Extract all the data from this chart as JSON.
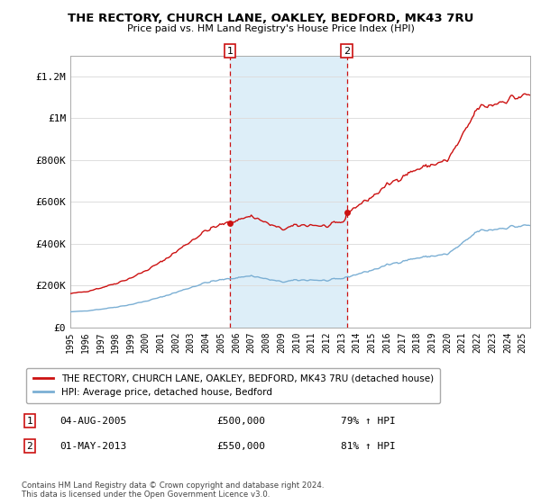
{
  "title": "THE RECTORY, CHURCH LANE, OAKLEY, BEDFORD, MK43 7RU",
  "subtitle": "Price paid vs. HM Land Registry's House Price Index (HPI)",
  "ylabel_ticks": [
    "£0",
    "£200K",
    "£400K",
    "£600K",
    "£800K",
    "£1M",
    "£1.2M"
  ],
  "ytick_values": [
    0,
    200000,
    400000,
    600000,
    800000,
    1000000,
    1200000
  ],
  "ylim": [
    0,
    1300000
  ],
  "xlim_start": 1995.0,
  "xlim_end": 2025.5,
  "sale1_year": 2005.585,
  "sale1_price": 500000,
  "sale1_label": "04-AUG-2005",
  "sale1_pct": "79% ↑ HPI",
  "sale2_year": 2013.33,
  "sale2_price": 550000,
  "sale2_label": "01-MAY-2013",
  "sale2_pct": "81% ↑ HPI",
  "legend_line1": "THE RECTORY, CHURCH LANE, OAKLEY, BEDFORD, MK43 7RU (detached house)",
  "legend_line2": "HPI: Average price, detached house, Bedford",
  "footer": "Contains HM Land Registry data © Crown copyright and database right 2024.\nThis data is licensed under the Open Government Licence v3.0.",
  "hpi_color": "#7bafd4",
  "property_color": "#cc1111",
  "shaded_region_color": "#ddeef8",
  "background_color": "#ffffff",
  "grid_color": "#dddddd"
}
